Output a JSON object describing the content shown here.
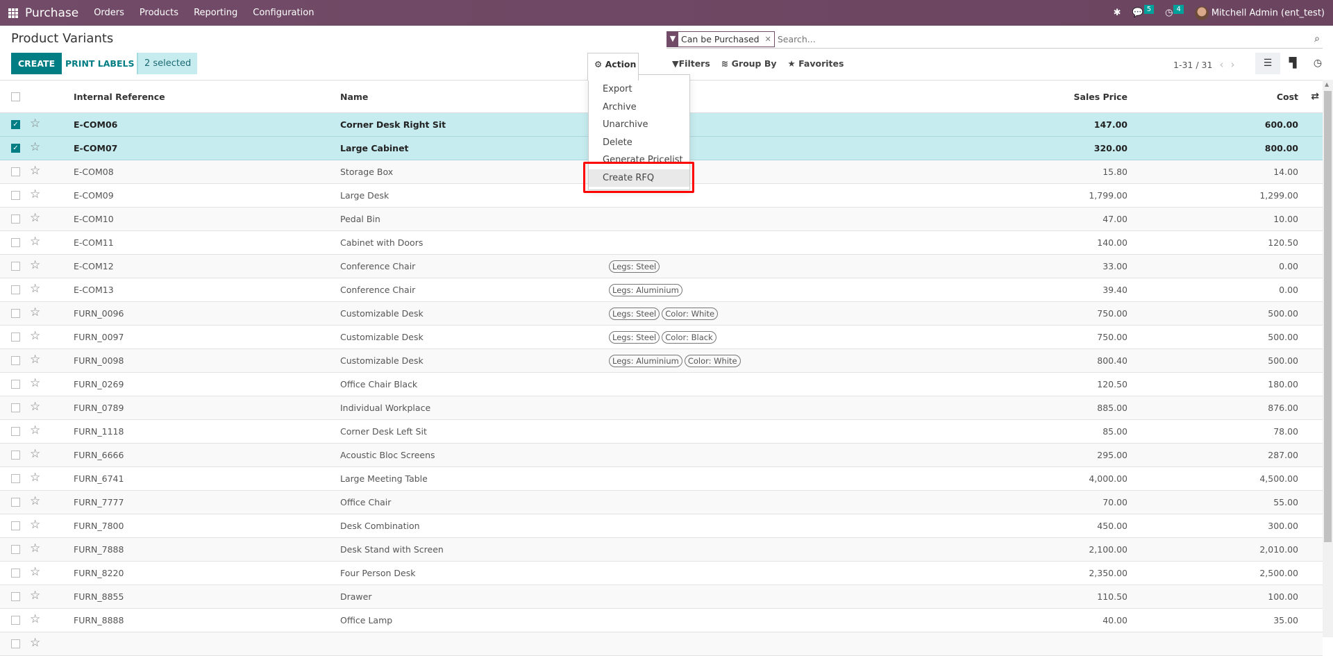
{
  "topbar": {
    "app": "Purchase",
    "menus": [
      "Orders",
      "Products",
      "Reporting",
      "Configuration"
    ],
    "messages_count": "5",
    "activities_count": "4",
    "user": "Mitchell Admin (ent_test)",
    "color": "#714b67"
  },
  "page": {
    "title": "Product Variants"
  },
  "toolbar": {
    "create": "CREATE",
    "print_labels": "PRINT LABELS",
    "selected": "2 selected",
    "action": "Action"
  },
  "search": {
    "facet": "Can be Purchased",
    "placeholder": "Search..."
  },
  "filters": {
    "filters": "Filters",
    "group_by": "Group By",
    "favorites": "Favorites"
  },
  "pager": {
    "range": "1-31 / 31"
  },
  "action_menu": {
    "items": [
      "Export",
      "Archive",
      "Unarchive",
      "Delete",
      "Generate Pricelist",
      "Create RFQ"
    ],
    "highlighted": "Create RFQ"
  },
  "table": {
    "headers": {
      "ref": "Internal Reference",
      "name": "Name",
      "price": "Sales Price",
      "cost": "Cost"
    },
    "rows": [
      {
        "ref": "E-COM06",
        "name": "Corner Desk Right Sit",
        "attrs": [],
        "price": "147.00",
        "cost": "600.00",
        "selected": true
      },
      {
        "ref": "E-COM07",
        "name": "Large Cabinet",
        "attrs": [],
        "price": "320.00",
        "cost": "800.00",
        "selected": true
      },
      {
        "ref": "E-COM08",
        "name": "Storage Box",
        "attrs": [],
        "price": "15.80",
        "cost": "14.00"
      },
      {
        "ref": "E-COM09",
        "name": "Large Desk",
        "attrs": [],
        "price": "1,799.00",
        "cost": "1,299.00"
      },
      {
        "ref": "E-COM10",
        "name": "Pedal Bin",
        "attrs": [],
        "price": "47.00",
        "cost": "10.00"
      },
      {
        "ref": "E-COM11",
        "name": "Cabinet with Doors",
        "attrs": [],
        "price": "140.00",
        "cost": "120.50"
      },
      {
        "ref": "E-COM12",
        "name": "Conference Chair",
        "attrs": [
          "Legs: Steel"
        ],
        "price": "33.00",
        "cost": "0.00"
      },
      {
        "ref": "E-COM13",
        "name": "Conference Chair",
        "attrs": [
          "Legs: Aluminium"
        ],
        "price": "39.40",
        "cost": "0.00"
      },
      {
        "ref": "FURN_0096",
        "name": "Customizable Desk",
        "attrs": [
          "Legs: Steel",
          "Color: White"
        ],
        "price": "750.00",
        "cost": "500.00"
      },
      {
        "ref": "FURN_0097",
        "name": "Customizable Desk",
        "attrs": [
          "Legs: Steel",
          "Color: Black"
        ],
        "price": "750.00",
        "cost": "500.00"
      },
      {
        "ref": "FURN_0098",
        "name": "Customizable Desk",
        "attrs": [
          "Legs: Aluminium",
          "Color: White"
        ],
        "price": "800.40",
        "cost": "500.00"
      },
      {
        "ref": "FURN_0269",
        "name": "Office Chair Black",
        "attrs": [],
        "price": "120.50",
        "cost": "180.00"
      },
      {
        "ref": "FURN_0789",
        "name": "Individual Workplace",
        "attrs": [],
        "price": "885.00",
        "cost": "876.00"
      },
      {
        "ref": "FURN_1118",
        "name": "Corner Desk Left Sit",
        "attrs": [],
        "price": "85.00",
        "cost": "78.00"
      },
      {
        "ref": "FURN_6666",
        "name": "Acoustic Bloc Screens",
        "attrs": [],
        "price": "295.00",
        "cost": "287.00"
      },
      {
        "ref": "FURN_6741",
        "name": "Large Meeting Table",
        "attrs": [],
        "price": "4,000.00",
        "cost": "4,500.00"
      },
      {
        "ref": "FURN_7777",
        "name": "Office Chair",
        "attrs": [],
        "price": "70.00",
        "cost": "55.00"
      },
      {
        "ref": "FURN_7800",
        "name": "Desk Combination",
        "attrs": [],
        "price": "450.00",
        "cost": "300.00"
      },
      {
        "ref": "FURN_7888",
        "name": "Desk Stand with Screen",
        "attrs": [],
        "price": "2,100.00",
        "cost": "2,010.00"
      },
      {
        "ref": "FURN_8220",
        "name": "Four Person Desk",
        "attrs": [],
        "price": "2,350.00",
        "cost": "2,500.00"
      },
      {
        "ref": "FURN_8855",
        "name": "Drawer",
        "attrs": [],
        "price": "110.50",
        "cost": "100.00"
      },
      {
        "ref": "FURN_8888",
        "name": "Office Lamp",
        "attrs": [],
        "price": "40.00",
        "cost": "35.00"
      }
    ]
  }
}
